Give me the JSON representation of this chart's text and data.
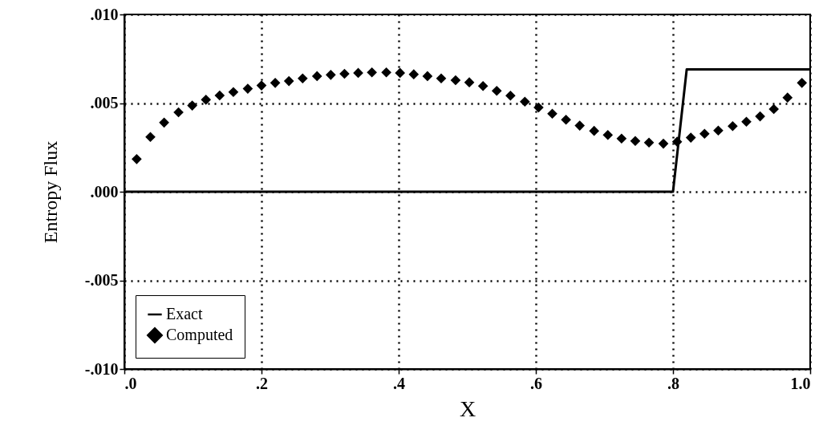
{
  "chart_data": {
    "type": "scatter",
    "xlabel": "X",
    "ylabel": "Entropy Flux",
    "xlim": [
      0,
      1
    ],
    "xticks": [
      {
        "value": 0,
        "label": ".0"
      },
      {
        "value": 0.2,
        "label": ".2"
      },
      {
        "value": 0.4,
        "label": ".4"
      },
      {
        "value": 0.6,
        "label": ".6"
      },
      {
        "value": 0.8,
        "label": ".8"
      },
      {
        "value": 1,
        "label": "1.0"
      }
    ],
    "ylim": [
      -0.01,
      0.01
    ],
    "yticks": [
      {
        "value": -0.01,
        "label": "-.010"
      },
      {
        "value": -0.005,
        "label": "-.005"
      },
      {
        "value": 0,
        "label": ".000"
      },
      {
        "value": 0.005,
        "label": ".005"
      },
      {
        "value": 0.01,
        "label": ".010"
      }
    ],
    "grid": true,
    "legend": "bottom left",
    "series": [
      {
        "name": "Exact",
        "type": "line",
        "color": "#000000",
        "x": [
          0,
          0.8,
          0.82,
          1.0
        ],
        "values": [
          0,
          0,
          0.0069,
          0.0069
        ]
      },
      {
        "name": "Computed",
        "marker": "diamond",
        "color": "#000000",
        "x": [
          0.018,
          0.038,
          0.058,
          0.079,
          0.099,
          0.119,
          0.139,
          0.159,
          0.18,
          0.2,
          0.22,
          0.24,
          0.26,
          0.281,
          0.301,
          0.321,
          0.341,
          0.361,
          0.382,
          0.402,
          0.422,
          0.442,
          0.462,
          0.483,
          0.503,
          0.523,
          0.543,
          0.563,
          0.584,
          0.604,
          0.624,
          0.644,
          0.664,
          0.685,
          0.705,
          0.725,
          0.745,
          0.765,
          0.786,
          0.806,
          0.826,
          0.846,
          0.866,
          0.887,
          0.907,
          0.927,
          0.947,
          0.967,
          0.988
        ],
        "values": [
          0.00184,
          0.00309,
          0.0039,
          0.00448,
          0.00486,
          0.00519,
          0.00543,
          0.00562,
          0.00581,
          0.00599,
          0.00614,
          0.00624,
          0.00639,
          0.00652,
          0.00659,
          0.00665,
          0.0067,
          0.00673,
          0.00673,
          0.0067,
          0.00662,
          0.00652,
          0.00639,
          0.00629,
          0.00617,
          0.00596,
          0.00569,
          0.00542,
          0.00508,
          0.00475,
          0.0044,
          0.00406,
          0.00373,
          0.00343,
          0.0032,
          0.003,
          0.00286,
          0.00277,
          0.00271,
          0.00282,
          0.00305,
          0.00327,
          0.00345,
          0.0037,
          0.00395,
          0.00425,
          0.00466,
          0.00531,
          0.00614
        ]
      }
    ]
  }
}
